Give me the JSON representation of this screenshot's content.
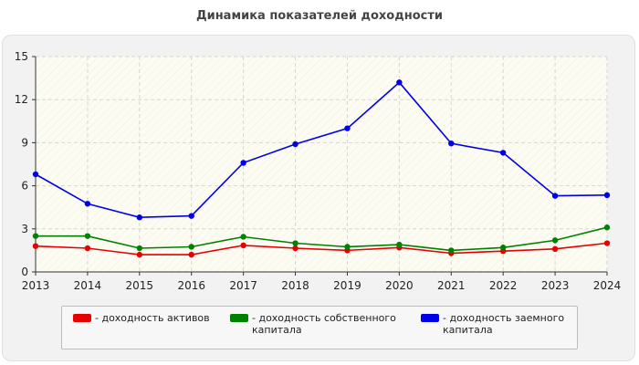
{
  "chart_data": {
    "type": "line",
    "title": "Динамика показателей доходности",
    "x": [
      "2013",
      "2014",
      "2015",
      "2016",
      "2017",
      "2018",
      "2019",
      "2020",
      "2021",
      "2022",
      "2023",
      "2024"
    ],
    "ylim": [
      0,
      15
    ],
    "yticks": [
      "0",
      "3",
      "6",
      "9",
      "12",
      "15"
    ],
    "grid": true,
    "legend_position": "bottom",
    "series": [
      {
        "name": "- доходность активов",
        "color": "#e60000",
        "values": [
          1.8,
          1.65,
          1.2,
          1.2,
          1.85,
          1.65,
          1.5,
          1.7,
          1.3,
          1.45,
          1.6,
          2.0
        ]
      },
      {
        "name": "- доходность собственного капитала",
        "color": "#008000",
        "values": [
          2.5,
          2.5,
          1.65,
          1.75,
          2.45,
          2.0,
          1.75,
          1.9,
          1.5,
          1.7,
          2.2,
          3.1
        ]
      },
      {
        "name": "- доходность заемного капитала",
        "color": "#0000e6",
        "values": [
          6.8,
          4.75,
          3.8,
          3.9,
          7.6,
          8.9,
          10.0,
          13.2,
          8.95,
          8.3,
          5.3,
          5.35
        ]
      }
    ]
  }
}
